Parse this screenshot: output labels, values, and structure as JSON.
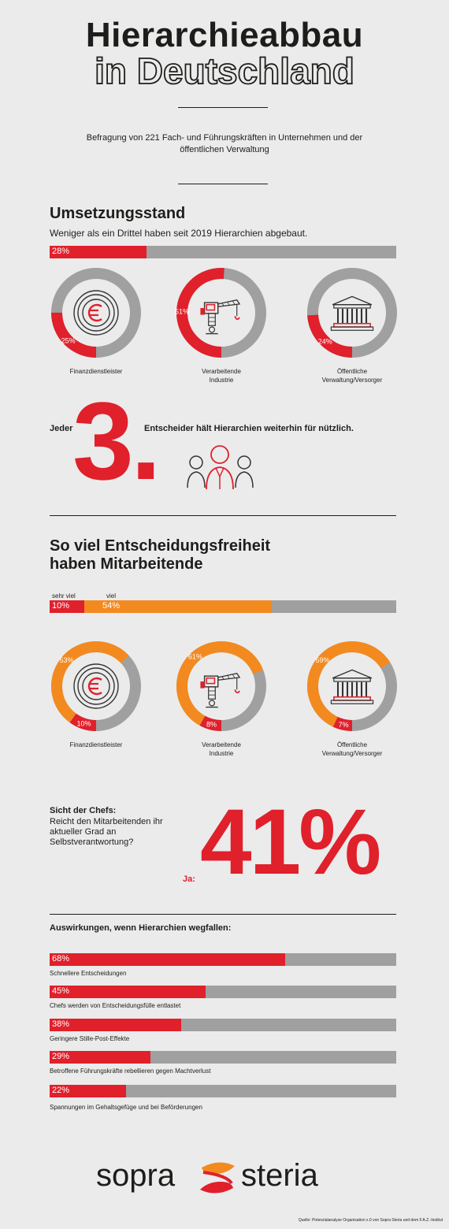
{
  "title": {
    "line1": "Hierarchieabbau",
    "line2": "in Deutschland"
  },
  "subtitle": "Befragung von 221 Fach- und Führungskräften in Unternehmen und der öffentlichen Verwaltung",
  "colors": {
    "red": "#e0202b",
    "orange": "#f38a1f",
    "grey": "#a0a0a0",
    "background": "#ebebeb"
  },
  "section1": {
    "heading": "Umsetzungsstand",
    "text": "Weniger als ein Drittel haben seit 2019 Hierarchien abgebaut.",
    "bar_label": "28%",
    "bar_value": 28,
    "donuts": [
      {
        "icon": "euro-icon",
        "value": 25,
        "label_pct": "25%",
        "label_line1": "Finanzdienstleister",
        "label_line2": ""
      },
      {
        "icon": "crane-icon",
        "value": 51,
        "label_pct": "51%",
        "label_line1": "Verarbeitende",
        "label_line2": "Industrie"
      },
      {
        "icon": "building-icon",
        "value": 24,
        "label_pct": "24%",
        "label_line1": "Öffentliche",
        "label_line2": "Verwaltung/Versorger"
      }
    ]
  },
  "callout": {
    "prefix": "Jeder",
    "number": "3.",
    "text": "Entscheider hält Hierarchien weiterhin für nützlich.",
    "icon": "people-icon"
  },
  "section2": {
    "heading_line1": "So viel Entscheidungsfreiheit",
    "heading_line2": "haben Mitarbeitende",
    "bar": {
      "segments": [
        {
          "label": "sehr viel",
          "value_label": "10%",
          "value": 10
        },
        {
          "label": "viel",
          "value_label": "54%",
          "value": 54
        }
      ]
    },
    "donuts": [
      {
        "icon": "euro-icon",
        "red": 10,
        "orange": 53,
        "red_label": "10%",
        "orange_label": "53%",
        "label_line1": "Finanzdienstleister",
        "label_line2": ""
      },
      {
        "icon": "crane-icon",
        "red": 8,
        "orange": 61,
        "red_label": "8%",
        "orange_label": "61%",
        "label_line1": "Verarbeitende",
        "label_line2": "Industrie"
      },
      {
        "icon": "building-icon",
        "red": 7,
        "orange": 59,
        "red_label": "7%",
        "orange_label": "59%",
        "label_line1": "Öffentliche",
        "label_line2": "Verwaltung/Versorger"
      }
    ]
  },
  "chefs": {
    "heading": "Sicht der Chefs:",
    "question": "Reicht den Mitarbeitenden ihr aktueller Grad an Selbstverantwortung?",
    "answer_label": "Ja:",
    "answer_value": "41%"
  },
  "effects": {
    "heading": "Auswirkungen, wenn Hierarchien wegfallen:",
    "items": [
      {
        "value": 68,
        "value_label": "68%",
        "label": "Schnellere Entscheidungen"
      },
      {
        "value": 45,
        "value_label": "45%",
        "label": "Chefs werden von Entscheidungsfülle entlastet"
      },
      {
        "value": 38,
        "value_label": "38%",
        "label": "Geringere Stille-Post-Effekte"
      },
      {
        "value": 29,
        "value_label": "29%",
        "label": "Betroffene Führungskräfte rebellieren gegen Machtverlust"
      },
      {
        "value": 22,
        "value_label": "22%",
        "label": "Spannungen im Gehaltsgefüge und bei Beförderungen"
      }
    ]
  },
  "footer": {
    "brand_left": "sopra",
    "brand_right": "steria",
    "source": "Quelle: Potenzialanalyse Organisation x.0 von Sopra Steria und dem F.A.Z.-Institut"
  }
}
